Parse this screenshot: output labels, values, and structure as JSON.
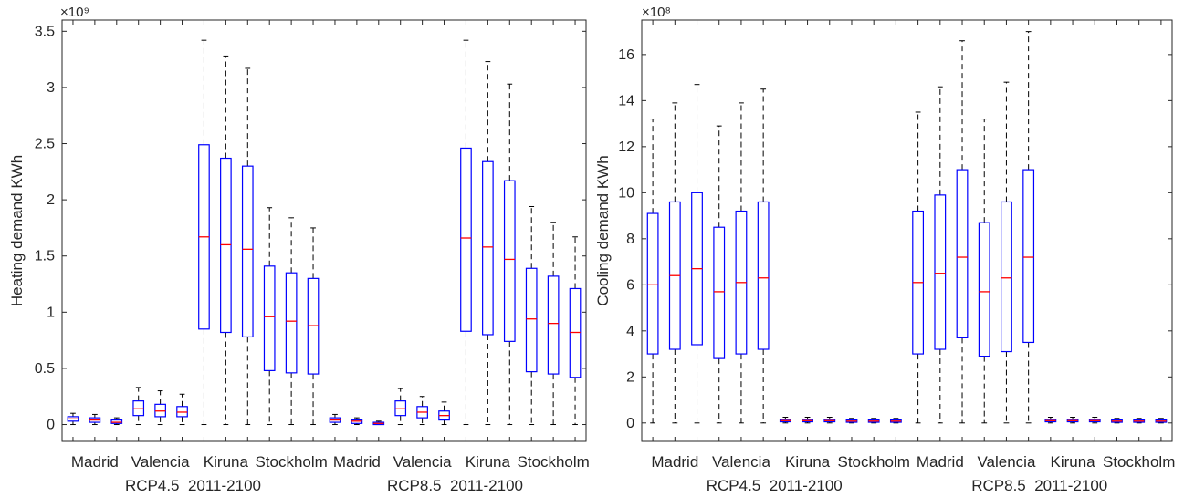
{
  "chart_data": [
    {
      "type": "boxplot",
      "ylabel": "Heating demand KWh",
      "exponent": "×10⁹",
      "ylim": [
        -0.15,
        3.6
      ],
      "yticks": [
        0,
        0.5,
        1,
        1.5,
        2,
        2.5,
        3,
        3.5
      ],
      "yticklabels": [
        "0",
        "0.5",
        "1",
        "1.5",
        "2",
        "2.5",
        "3",
        "3.5"
      ],
      "xticklabels": [
        "Madrid",
        "Valencia",
        "Kiruna",
        "Stockholm",
        "Madrid",
        "Valencia",
        "Kiruna",
        "Stockholm"
      ],
      "xticklabel_positions": [
        2,
        5,
        8,
        11,
        14,
        17,
        20,
        23
      ],
      "group_labels": [
        {
          "text": "RCP4.5  2011-2100",
          "center": 6.5
        },
        {
          "text": "RCP8.5  2011-2100",
          "center": 18.5
        }
      ],
      "box_color": "#0000ff",
      "median_color": "#ff0000",
      "boxes": [
        {
          "min": 0.0,
          "q1": 0.03,
          "median": 0.05,
          "q3": 0.07,
          "max": 0.1
        },
        {
          "min": 0.0,
          "q1": 0.02,
          "median": 0.04,
          "q3": 0.06,
          "max": 0.09
        },
        {
          "min": 0.0,
          "q1": 0.01,
          "median": 0.02,
          "q3": 0.04,
          "max": 0.06
        },
        {
          "min": 0.0,
          "q1": 0.08,
          "median": 0.14,
          "q3": 0.21,
          "max": 0.33
        },
        {
          "min": 0.0,
          "q1": 0.07,
          "median": 0.12,
          "q3": 0.18,
          "max": 0.3
        },
        {
          "min": 0.0,
          "q1": 0.07,
          "median": 0.11,
          "q3": 0.16,
          "max": 0.27
        },
        {
          "min": 0.0,
          "q1": 0.85,
          "median": 1.67,
          "q3": 2.49,
          "max": 3.42
        },
        {
          "min": 0.0,
          "q1": 0.82,
          "median": 1.6,
          "q3": 2.37,
          "max": 3.28
        },
        {
          "min": 0.0,
          "q1": 0.78,
          "median": 1.56,
          "q3": 2.3,
          "max": 3.17
        },
        {
          "min": 0.0,
          "q1": 0.48,
          "median": 0.96,
          "q3": 1.41,
          "max": 1.93
        },
        {
          "min": 0.0,
          "q1": 0.46,
          "median": 0.92,
          "q3": 1.35,
          "max": 1.84
        },
        {
          "min": 0.0,
          "q1": 0.45,
          "median": 0.88,
          "q3": 1.3,
          "max": 1.75
        },
        {
          "min": 0.0,
          "q1": 0.02,
          "median": 0.04,
          "q3": 0.06,
          "max": 0.09
        },
        {
          "min": 0.0,
          "q1": 0.01,
          "median": 0.03,
          "q3": 0.04,
          "max": 0.06
        },
        {
          "min": 0.0,
          "q1": 0.0,
          "median": 0.01,
          "q3": 0.02,
          "max": 0.03
        },
        {
          "min": 0.0,
          "q1": 0.08,
          "median": 0.14,
          "q3": 0.21,
          "max": 0.32
        },
        {
          "min": 0.0,
          "q1": 0.06,
          "median": 0.11,
          "q3": 0.16,
          "max": 0.25
        },
        {
          "min": 0.0,
          "q1": 0.04,
          "median": 0.08,
          "q3": 0.12,
          "max": 0.2
        },
        {
          "min": 0.0,
          "q1": 0.83,
          "median": 1.66,
          "q3": 2.46,
          "max": 3.42
        },
        {
          "min": 0.0,
          "q1": 0.8,
          "median": 1.58,
          "q3": 2.34,
          "max": 3.23
        },
        {
          "min": 0.0,
          "q1": 0.74,
          "median": 1.47,
          "q3": 2.17,
          "max": 3.03
        },
        {
          "min": 0.0,
          "q1": 0.47,
          "median": 0.94,
          "q3": 1.39,
          "max": 1.94
        },
        {
          "min": 0.0,
          "q1": 0.45,
          "median": 0.9,
          "q3": 1.32,
          "max": 1.8
        },
        {
          "min": 0.0,
          "q1": 0.42,
          "median": 0.82,
          "q3": 1.21,
          "max": 1.67
        }
      ]
    },
    {
      "type": "boxplot",
      "ylabel": "Cooling demand KWh",
      "exponent": "×10⁸",
      "ylim": [
        -0.8,
        17.5
      ],
      "yticks": [
        0,
        2,
        4,
        6,
        8,
        10,
        12,
        14,
        16
      ],
      "yticklabels": [
        "0",
        "2",
        "4",
        "6",
        "8",
        "10",
        "12",
        "14",
        "16"
      ],
      "xticklabels": [
        "Madrid",
        "Valencia",
        "Kiruna",
        "Stockholm",
        "Madrid",
        "Valencia",
        "Kiruna",
        "Stockholm"
      ],
      "xticklabel_positions": [
        2,
        5,
        8,
        11,
        14,
        17,
        20,
        23
      ],
      "group_labels": [
        {
          "text": "RCP4.5  2011-2100",
          "center": 6.5
        },
        {
          "text": "RCP8.5  2011-2100",
          "center": 18.5
        }
      ],
      "box_color": "#0000ff",
      "median_color": "#ff0000",
      "boxes": [
        {
          "min": 0.0,
          "q1": 3.0,
          "median": 6.0,
          "q3": 9.1,
          "max": 13.2
        },
        {
          "min": 0.0,
          "q1": 3.2,
          "median": 6.4,
          "q3": 9.6,
          "max": 13.9
        },
        {
          "min": 0.0,
          "q1": 3.4,
          "median": 6.7,
          "q3": 10.0,
          "max": 14.7
        },
        {
          "min": 0.0,
          "q1": 2.8,
          "median": 5.7,
          "q3": 8.5,
          "max": 12.9
        },
        {
          "min": 0.0,
          "q1": 3.0,
          "median": 6.1,
          "q3": 9.2,
          "max": 13.9
        },
        {
          "min": 0.0,
          "q1": 3.2,
          "median": 6.3,
          "q3": 9.6,
          "max": 14.5
        },
        {
          "min": 0.0,
          "q1": 0.05,
          "median": 0.1,
          "q3": 0.15,
          "max": 0.25
        },
        {
          "min": 0.0,
          "q1": 0.05,
          "median": 0.1,
          "q3": 0.15,
          "max": 0.25
        },
        {
          "min": 0.0,
          "q1": 0.05,
          "median": 0.1,
          "q3": 0.15,
          "max": 0.25
        },
        {
          "min": 0.0,
          "q1": 0.03,
          "median": 0.08,
          "q3": 0.13,
          "max": 0.2
        },
        {
          "min": 0.0,
          "q1": 0.03,
          "median": 0.08,
          "q3": 0.13,
          "max": 0.2
        },
        {
          "min": 0.0,
          "q1": 0.03,
          "median": 0.08,
          "q3": 0.13,
          "max": 0.2
        },
        {
          "min": 0.0,
          "q1": 3.0,
          "median": 6.1,
          "q3": 9.2,
          "max": 13.5
        },
        {
          "min": 0.0,
          "q1": 3.2,
          "median": 6.5,
          "q3": 9.9,
          "max": 14.6
        },
        {
          "min": 0.0,
          "q1": 3.7,
          "median": 7.2,
          "q3": 11.0,
          "max": 16.6
        },
        {
          "min": 0.0,
          "q1": 2.9,
          "median": 5.7,
          "q3": 8.7,
          "max": 13.2
        },
        {
          "min": 0.0,
          "q1": 3.1,
          "median": 6.3,
          "q3": 9.6,
          "max": 14.8
        },
        {
          "min": 0.0,
          "q1": 3.5,
          "median": 7.2,
          "q3": 11.0,
          "max": 17.0
        },
        {
          "min": 0.0,
          "q1": 0.05,
          "median": 0.1,
          "q3": 0.15,
          "max": 0.25
        },
        {
          "min": 0.0,
          "q1": 0.05,
          "median": 0.1,
          "q3": 0.15,
          "max": 0.25
        },
        {
          "min": 0.0,
          "q1": 0.05,
          "median": 0.1,
          "q3": 0.15,
          "max": 0.25
        },
        {
          "min": 0.0,
          "q1": 0.03,
          "median": 0.08,
          "q3": 0.13,
          "max": 0.2
        },
        {
          "min": 0.0,
          "q1": 0.03,
          "median": 0.08,
          "q3": 0.13,
          "max": 0.2
        },
        {
          "min": 0.0,
          "q1": 0.03,
          "median": 0.08,
          "q3": 0.13,
          "max": 0.2
        }
      ]
    }
  ]
}
